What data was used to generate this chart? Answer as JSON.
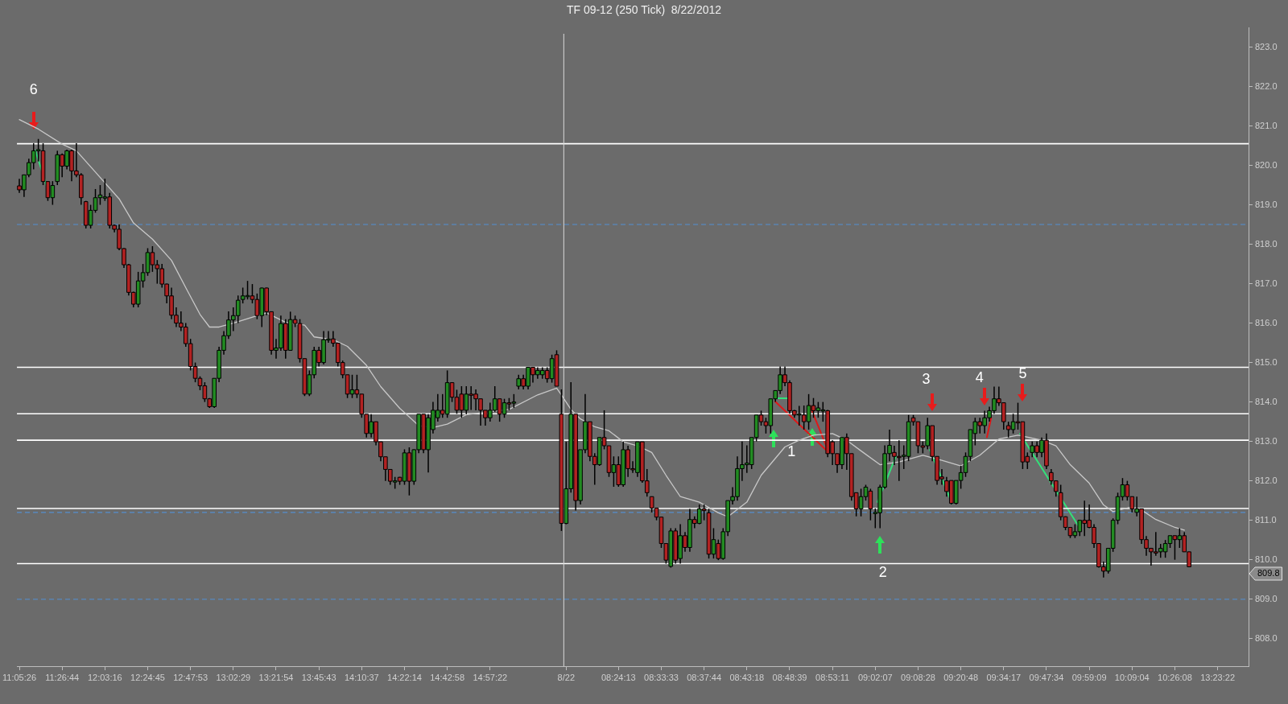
{
  "chart_data": {
    "type": "candlestick",
    "title": "TF 09-12 (250 Tick)  8/22/2012",
    "ylim": [
      807.3,
      823.5
    ],
    "yticks": [
      {
        "value": 808,
        "label": "808.0"
      },
      {
        "value": 809,
        "label": "809.0"
      },
      {
        "value": 810,
        "label": "810.0"
      },
      {
        "value": 811,
        "label": "811.0"
      },
      {
        "value": 812,
        "label": "812.0"
      },
      {
        "value": 813,
        "label": "813.0"
      },
      {
        "value": 814,
        "label": "814.0"
      },
      {
        "value": 815,
        "label": "815.0"
      },
      {
        "value": 816,
        "label": "816.0"
      },
      {
        "value": 817,
        "label": "817.0"
      },
      {
        "value": 818,
        "label": "818.0"
      },
      {
        "value": 819,
        "label": "819.0"
      },
      {
        "value": 820,
        "label": "820.0"
      },
      {
        "value": 821,
        "label": "821.0"
      },
      {
        "value": 822,
        "label": "822.0"
      },
      {
        "value": 823,
        "label": "823.0"
      }
    ],
    "grid": false,
    "legend": false,
    "categories": [
      "11:05:26",
      null,
      null,
      null,
      null,
      null,
      null,
      null,
      null,
      "11:26:44",
      null,
      null,
      null,
      null,
      null,
      null,
      null,
      null,
      "12:03:16",
      null,
      null,
      null,
      null,
      null,
      null,
      null,
      null,
      "12:24:45",
      null,
      null,
      null,
      null,
      null,
      null,
      null,
      null,
      "12:47:53",
      null,
      null,
      null,
      null,
      null,
      null,
      null,
      null,
      "13:02:29",
      null,
      null,
      null,
      null,
      null,
      null,
      null,
      null,
      "13:21:54",
      null,
      null,
      null,
      null,
      null,
      null,
      null,
      null,
      "13:45:43",
      null,
      null,
      null,
      null,
      null,
      null,
      null,
      null,
      "14:10:37",
      null,
      null,
      null,
      null,
      null,
      null,
      null,
      null,
      "14:22:14",
      null,
      null,
      null,
      null,
      null,
      null,
      null,
      null,
      "14:42:58",
      null,
      null,
      null,
      null,
      null,
      null,
      null,
      null,
      "14:57:22",
      null,
      null,
      null,
      null,
      null,
      null,
      null,
      null,
      null,
      null,
      null,
      null,
      null,
      null,
      null,
      "8/22",
      null,
      null,
      null,
      null,
      null,
      null,
      null,
      null,
      null,
      null,
      "08:24:13",
      null,
      null,
      null,
      null,
      null,
      null,
      null,
      null,
      "08:33:33",
      null,
      null,
      null,
      null,
      null,
      null,
      null,
      null,
      "08:37:44",
      null,
      null,
      null,
      null,
      null,
      null,
      null,
      null,
      "08:43:18",
      null,
      null,
      null,
      null,
      null,
      null,
      null,
      null,
      "08:48:39",
      null,
      null,
      null,
      null,
      null,
      null,
      null,
      null,
      "08:53:11",
      null,
      null,
      null,
      null,
      null,
      null,
      null,
      null,
      "09:02:07",
      null,
      null,
      null,
      null,
      null,
      null,
      null,
      null,
      "09:08:28",
      null,
      null,
      null,
      null,
      null,
      null,
      null,
      null,
      "09:20:48",
      null,
      null,
      null,
      null,
      null,
      null,
      null,
      null,
      "09:34:17",
      null,
      null,
      null,
      null,
      null,
      null,
      null,
      null,
      "09:47:34",
      null,
      null,
      null,
      null,
      null,
      null,
      null,
      null,
      "09:59:09",
      null,
      null,
      null,
      null,
      null,
      null,
      null,
      null,
      "10:09:04",
      null,
      null,
      null,
      null,
      null,
      null,
      null,
      null,
      "10:26:08",
      null,
      null,
      null,
      null,
      null,
      null,
      null,
      null,
      "13:23:22",
      null,
      null,
      null,
      null,
      null,
      null
    ],
    "ohlc": [
      [
        819.48,
        819.66,
        819.3,
        819.38
      ],
      [
        819.38,
        819.76,
        819.2,
        819.76
      ],
      [
        819.76,
        820.17,
        819.7,
        820.07
      ],
      [
        820.07,
        820.56,
        819.9,
        820.37
      ],
      [
        820.37,
        820.67,
        820.1,
        820.4
      ],
      [
        820.37,
        820.56,
        819.5,
        819.59
      ],
      [
        819.59,
        819.59,
        819.1,
        819.18
      ],
      [
        819.18,
        819.6,
        819.0,
        819.49
      ],
      [
        819.59,
        820.37,
        819.5,
        820.27
      ],
      [
        820.27,
        820.3,
        819.7,
        819.98
      ],
      [
        819.98,
        820.4,
        819.9,
        820.37
      ],
      [
        820.37,
        820.4,
        819.6,
        819.86
      ],
      [
        819.86,
        820.56,
        819.7,
        819.76
      ],
      [
        819.76,
        819.8,
        819.0,
        819.18
      ],
      [
        819.08,
        819.1,
        818.4,
        818.48
      ],
      [
        818.48,
        819.0,
        818.4,
        818.86
      ],
      [
        818.86,
        819.4,
        818.8,
        819.18
      ],
      [
        819.18,
        819.5,
        819.0,
        819.25
      ],
      [
        819.18,
        819.66,
        819.1,
        819.2
      ],
      [
        819.2,
        819.3,
        818.4,
        818.48
      ],
      [
        818.48,
        818.5,
        818.3,
        818.38
      ],
      [
        818.38,
        818.5,
        817.85,
        817.89
      ],
      [
        817.89,
        817.9,
        817.4,
        817.48
      ],
      [
        817.48,
        817.5,
        816.7,
        816.78
      ],
      [
        816.78,
        816.8,
        816.4,
        816.48
      ],
      [
        816.48,
        817.3,
        816.4,
        817.07
      ],
      [
        817.07,
        817.5,
        816.9,
        817.28
      ],
      [
        817.28,
        817.9,
        817.2,
        817.79
      ],
      [
        817.79,
        817.95,
        817.3,
        817.48
      ],
      [
        817.48,
        817.6,
        817.0,
        817.38
      ],
      [
        817.38,
        817.5,
        816.9,
        816.99
      ],
      [
        816.99,
        817.0,
        816.5,
        816.69
      ],
      [
        816.69,
        816.9,
        816.1,
        816.2
      ],
      [
        816.2,
        816.4,
        815.9,
        816.0
      ],
      [
        816.0,
        816.3,
        815.8,
        815.9
      ],
      [
        815.9,
        816.0,
        815.4,
        815.48
      ],
      [
        815.48,
        815.6,
        814.8,
        814.9
      ],
      [
        814.9,
        815.0,
        814.5,
        814.6
      ],
      [
        814.6,
        814.65,
        814.3,
        814.41
      ],
      [
        814.41,
        814.5,
        814.0,
        814.08
      ],
      [
        814.08,
        814.1,
        813.85,
        813.88
      ],
      [
        813.88,
        814.6,
        813.85,
        814.6
      ],
      [
        814.6,
        815.4,
        814.5,
        815.31
      ],
      [
        815.31,
        815.8,
        815.2,
        815.68
      ],
      [
        815.68,
        816.3,
        815.6,
        816.08
      ],
      [
        816.08,
        816.4,
        815.8,
        816.19
      ],
      [
        816.19,
        816.7,
        816.0,
        816.58
      ],
      [
        816.6,
        816.9,
        816.5,
        816.69
      ],
      [
        816.69,
        817.07,
        816.6,
        816.7
      ],
      [
        816.69,
        816.99,
        816.5,
        816.6
      ],
      [
        816.6,
        816.75,
        816.1,
        816.19
      ],
      [
        816.19,
        816.9,
        815.9,
        816.89
      ],
      [
        816.89,
        816.9,
        816.2,
        816.29
      ],
      [
        816.29,
        816.3,
        815.2,
        815.31
      ],
      [
        815.31,
        815.6,
        815.1,
        815.37
      ],
      [
        815.37,
        816.19,
        815.3,
        815.99
      ],
      [
        815.99,
        816.1,
        815.1,
        815.31
      ],
      [
        815.31,
        816.29,
        815.3,
        816.09
      ],
      [
        816.09,
        816.19,
        815.9,
        815.99
      ],
      [
        815.99,
        816.1,
        815.0,
        815.1
      ],
      [
        815.1,
        815.1,
        814.15,
        814.2
      ],
      [
        814.2,
        814.8,
        814.15,
        814.69
      ],
      [
        814.69,
        815.4,
        814.6,
        815.31
      ],
      [
        815.31,
        815.4,
        814.9,
        815.0
      ],
      [
        815.0,
        815.8,
        814.95,
        815.58
      ],
      [
        815.58,
        815.8,
        815.5,
        815.6
      ],
      [
        815.6,
        815.8,
        815.4,
        815.49
      ],
      [
        815.49,
        815.5,
        814.9,
        815.0
      ],
      [
        815.0,
        815.05,
        814.6,
        814.69
      ],
      [
        814.69,
        814.69,
        814.1,
        814.2
      ],
      [
        814.2,
        814.69,
        814.1,
        814.31
      ],
      [
        814.31,
        814.69,
        814.1,
        814.2
      ],
      [
        814.2,
        814.2,
        813.6,
        813.69
      ],
      [
        813.69,
        813.69,
        813.1,
        813.2
      ],
      [
        813.2,
        813.69,
        813.1,
        813.5
      ],
      [
        813.5,
        813.5,
        812.9,
        812.99
      ],
      [
        812.99,
        812.99,
        812.5,
        812.61
      ],
      [
        812.61,
        812.61,
        812.0,
        812.29
      ],
      [
        812.29,
        812.29,
        811.9,
        811.99
      ],
      [
        811.99,
        812.1,
        811.8,
        812.0
      ],
      [
        812.09,
        812.1,
        811.9,
        811.99
      ],
      [
        811.99,
        812.8,
        811.9,
        812.71
      ],
      [
        812.71,
        812.85,
        811.63,
        811.99
      ],
      [
        811.99,
        812.8,
        811.9,
        812.79
      ],
      [
        812.79,
        813.69,
        812.7,
        813.69
      ],
      [
        813.69,
        813.69,
        812.7,
        812.79
      ],
      [
        812.79,
        813.69,
        812.21,
        813.6
      ],
      [
        813.3,
        814.0,
        813.2,
        813.79
      ],
      [
        813.6,
        814.2,
        813.5,
        813.79
      ],
      [
        813.79,
        814.2,
        813.6,
        813.69
      ],
      [
        813.69,
        814.8,
        813.6,
        814.49
      ],
      [
        814.49,
        814.5,
        814.0,
        814.12
      ],
      [
        814.12,
        814.31,
        813.7,
        813.79
      ],
      [
        814.2,
        814.4,
        813.6,
        813.79
      ],
      [
        813.79,
        814.4,
        813.69,
        814.2
      ],
      [
        814.2,
        814.4,
        813.8,
        814.2
      ],
      [
        814.2,
        814.32,
        813.79,
        814.08
      ],
      [
        814.08,
        814.08,
        813.4,
        813.79
      ],
      [
        813.79,
        813.79,
        813.4,
        813.6
      ],
      [
        813.6,
        813.98,
        813.5,
        813.79
      ],
      [
        813.79,
        814.4,
        813.75,
        814.08
      ],
      [
        814.08,
        814.08,
        813.5,
        813.69
      ],
      [
        813.69,
        814.08,
        813.6,
        813.98
      ],
      [
        813.98,
        814.1,
        813.79,
        813.98
      ],
      [
        813.98,
        814.2,
        813.85,
        814.0
      ],
      [
        814.4,
        814.69,
        814.32,
        814.59
      ],
      [
        814.59,
        814.69,
        814.32,
        814.4
      ],
      [
        814.4,
        814.88,
        814.32,
        814.88
      ],
      [
        814.88,
        814.88,
        814.49,
        814.69
      ],
      [
        814.69,
        814.88,
        814.59,
        814.8
      ],
      [
        814.69,
        814.88,
        814.59,
        814.8
      ],
      [
        814.8,
        814.88,
        814.49,
        814.59
      ],
      [
        814.59,
        815.2,
        814.49,
        815.1
      ],
      [
        815.2,
        815.31,
        814.4,
        814.4
      ],
      [
        813.69,
        814.32,
        810.73,
        810.92
      ],
      [
        810.92,
        812.99,
        810.9,
        811.8
      ],
      [
        811.8,
        814.5,
        811.7,
        813.69
      ],
      [
        813.69,
        813.69,
        811.25,
        811.5
      ],
      [
        811.5,
        812.79,
        811.4,
        812.79
      ],
      [
        812.79,
        814.2,
        812.7,
        813.5
      ],
      [
        813.5,
        813.5,
        812.5,
        812.62
      ],
      [
        812.62,
        812.7,
        811.9,
        812.41
      ],
      [
        812.41,
        813.1,
        812.38,
        813.1
      ],
      [
        813.1,
        813.79,
        812.8,
        812.89
      ],
      [
        812.89,
        812.89,
        812.1,
        812.21
      ],
      [
        812.21,
        812.62,
        811.85,
        812.41
      ],
      [
        812.41,
        812.62,
        811.85,
        811.9
      ],
      [
        811.9,
        812.99,
        811.85,
        812.79
      ],
      [
        812.79,
        812.89,
        812.1,
        812.31
      ],
      [
        812.31,
        812.5,
        812.2,
        812.31
      ],
      [
        812.21,
        812.99,
        812.1,
        812.99
      ],
      [
        812.99,
        812.99,
        811.95,
        812.0
      ],
      [
        812.0,
        812.3,
        811.6,
        811.7
      ],
      [
        811.6,
        811.6,
        811.2,
        811.31
      ],
      [
        811.31,
        811.31,
        811.0,
        811.08
      ],
      [
        811.08,
        811.08,
        810.3,
        810.41
      ],
      [
        810.41,
        810.41,
        809.9,
        809.99
      ],
      [
        809.83,
        810.8,
        809.8,
        810.73
      ],
      [
        810.73,
        810.8,
        809.9,
        809.99
      ],
      [
        810.03,
        810.9,
        809.9,
        810.61
      ],
      [
        810.61,
        810.7,
        810.2,
        810.31
      ],
      [
        810.31,
        811.29,
        810.2,
        811.02
      ],
      [
        811.02,
        811.1,
        810.8,
        810.92
      ],
      [
        810.92,
        811.4,
        810.9,
        811.29
      ],
      [
        811.29,
        811.4,
        811.0,
        811.25
      ],
      [
        811.19,
        811.29,
        810.03,
        810.14
      ],
      [
        810.14,
        810.8,
        810.03,
        810.51
      ],
      [
        810.41,
        810.51,
        809.99,
        810.03
      ],
      [
        810.03,
        810.8,
        810.0,
        810.71
      ],
      [
        810.71,
        811.5,
        810.6,
        811.5
      ],
      [
        811.5,
        811.84,
        811.4,
        811.6
      ],
      [
        811.6,
        812.62,
        811.5,
        812.31
      ],
      [
        812.31,
        813.0,
        812.0,
        812.41
      ],
      [
        812.41,
        812.9,
        812.2,
        812.45
      ],
      [
        812.41,
        813.1,
        812.3,
        813.1
      ],
      [
        813.1,
        813.67,
        813.0,
        813.67
      ],
      [
        813.67,
        813.78,
        813.4,
        813.5
      ],
      [
        813.5,
        813.6,
        813.2,
        813.4
      ],
      [
        813.4,
        814.08,
        813.2,
        814.08
      ],
      [
        814.08,
        814.29,
        814.0,
        814.29
      ],
      [
        814.29,
        814.9,
        814.2,
        814.69
      ],
      [
        814.69,
        814.9,
        814.4,
        814.49
      ],
      [
        814.49,
        814.55,
        813.7,
        813.78
      ],
      [
        813.78,
        813.8,
        813.6,
        813.67
      ],
      [
        813.67,
        813.9,
        813.4,
        813.7
      ],
      [
        813.67,
        813.91,
        813.3,
        813.5
      ],
      [
        813.5,
        814.2,
        813.3,
        813.91
      ],
      [
        813.91,
        814.1,
        813.6,
        813.78
      ],
      [
        813.78,
        814.0,
        813.6,
        813.85
      ],
      [
        813.78,
        814.0,
        813.5,
        813.8
      ],
      [
        813.78,
        813.8,
        812.6,
        812.69
      ],
      [
        812.99,
        813.03,
        812.4,
        812.69
      ],
      [
        812.69,
        812.69,
        812.2,
        812.41
      ],
      [
        812.41,
        813.1,
        812.3,
        813.1
      ],
      [
        813.1,
        813.2,
        812.28,
        812.69
      ],
      [
        812.69,
        812.69,
        811.5,
        811.6
      ],
      [
        811.7,
        811.7,
        811.1,
        811.29
      ],
      [
        811.29,
        811.8,
        811.1,
        811.6
      ],
      [
        811.6,
        811.9,
        811.5,
        811.84
      ],
      [
        811.74,
        811.8,
        811.0,
        811.29
      ],
      [
        811.19,
        811.3,
        810.8,
        811.2
      ],
      [
        811.19,
        811.9,
        810.8,
        811.84
      ],
      [
        811.84,
        812.9,
        811.8,
        812.69
      ],
      [
        812.69,
        813.3,
        812.5,
        812.9
      ],
      [
        812.72,
        812.89,
        812.4,
        812.62
      ],
      [
        812.62,
        813.03,
        812.0,
        812.62
      ],
      [
        812.62,
        812.9,
        812.3,
        812.65
      ],
      [
        812.62,
        813.67,
        812.5,
        813.5
      ],
      [
        813.6,
        813.67,
        813.4,
        813.5
      ],
      [
        813.5,
        813.5,
        812.7,
        812.89
      ],
      [
        812.89,
        813.0,
        812.7,
        812.85
      ],
      [
        812.89,
        813.6,
        812.8,
        813.4
      ],
      [
        813.4,
        813.4,
        812.5,
        812.62
      ],
      [
        812.62,
        812.62,
        811.9,
        812.01
      ],
      [
        812.1,
        812.3,
        811.9,
        812.05
      ],
      [
        812.0,
        812.1,
        811.6,
        811.73
      ],
      [
        812.01,
        812.01,
        811.4,
        811.43
      ],
      [
        811.43,
        812.01,
        811.4,
        812.01
      ],
      [
        812.01,
        812.38,
        811.8,
        812.21
      ],
      [
        812.21,
        812.72,
        812.1,
        812.62
      ],
      [
        812.62,
        813.3,
        812.5,
        813.3
      ],
      [
        813.2,
        813.6,
        812.9,
        813.5
      ],
      [
        813.5,
        813.6,
        813.2,
        813.4
      ],
      [
        813.4,
        813.78,
        813.2,
        813.6
      ],
      [
        813.6,
        813.88,
        813.5,
        813.78
      ],
      [
        813.78,
        814.39,
        813.7,
        814.08
      ],
      [
        814.08,
        814.39,
        813.9,
        813.98
      ],
      [
        813.98,
        813.98,
        813.3,
        813.5
      ],
      [
        813.4,
        813.5,
        813.1,
        813.3
      ],
      [
        813.3,
        813.7,
        813.2,
        813.5
      ],
      [
        813.5,
        813.98,
        813.3,
        813.5
      ],
      [
        813.5,
        813.5,
        812.3,
        812.48
      ],
      [
        812.62,
        812.72,
        812.3,
        812.48
      ],
      [
        812.72,
        813.0,
        812.6,
        812.89
      ],
      [
        812.89,
        813.0,
        812.6,
        812.72
      ],
      [
        812.72,
        813.1,
        812.6,
        813.03
      ],
      [
        813.03,
        813.2,
        812.3,
        812.38
      ],
      [
        812.21,
        812.3,
        811.9,
        812.0
      ],
      [
        812.0,
        812.0,
        811.6,
        811.73
      ],
      [
        811.7,
        811.9,
        811.0,
        811.09
      ],
      [
        811.09,
        811.1,
        810.75,
        810.82
      ],
      [
        810.82,
        810.82,
        810.55,
        810.61
      ],
      [
        810.61,
        810.9,
        810.55,
        810.71
      ],
      [
        810.71,
        811.0,
        810.6,
        811.0
      ],
      [
        811.0,
        811.5,
        810.6,
        810.92
      ],
      [
        811.0,
        811.4,
        810.8,
        810.82
      ],
      [
        810.82,
        810.9,
        810.3,
        810.41
      ],
      [
        810.41,
        810.41,
        809.8,
        809.82
      ],
      [
        809.82,
        809.95,
        809.55,
        809.71
      ],
      [
        809.71,
        810.29,
        809.65,
        810.29
      ],
      [
        810.29,
        811.05,
        810.2,
        811.0
      ],
      [
        811.0,
        811.7,
        810.9,
        811.6
      ],
      [
        811.6,
        812.07,
        811.5,
        811.9
      ],
      [
        811.9,
        812.0,
        811.5,
        811.6
      ],
      [
        811.6,
        811.6,
        811.2,
        811.29
      ],
      [
        811.2,
        811.6,
        811.1,
        811.29
      ],
      [
        811.29,
        811.29,
        810.4,
        810.51
      ],
      [
        810.51,
        810.6,
        810.1,
        810.29
      ],
      [
        810.29,
        810.3,
        809.85,
        810.2
      ],
      [
        810.2,
        810.7,
        810.1,
        810.2
      ],
      [
        810.2,
        810.4,
        810.05,
        810.29
      ],
      [
        810.2,
        810.5,
        810.05,
        810.41
      ],
      [
        810.41,
        810.61,
        810.3,
        810.61
      ],
      [
        810.61,
        810.61,
        810.0,
        810.51
      ],
      [
        810.51,
        810.8,
        810.3,
        810.61
      ],
      [
        810.61,
        810.7,
        810.2,
        810.2
      ],
      [
        810.2,
        810.2,
        809.82,
        809.82
      ],
      null,
      null,
      null,
      null,
      null,
      null,
      null,
      null,
      null,
      null,
      null,
      null
    ],
    "colors": [
      "#b22222",
      "#228b22",
      "#228b22",
      "#228b22",
      "#228b22",
      "#b22222",
      "#b22222",
      "#228b22",
      "#228b22",
      "#b22222",
      "#228b22",
      "#b22222",
      "#b22222",
      "#b22222",
      "#b22222",
      "#228b22",
      "#228b22",
      "#228b22",
      "#228b22",
      "#b22222",
      "#b22222",
      "#b22222",
      "#b22222",
      "#b22222",
      "#b22222",
      "#228b22",
      "#228b22",
      "#228b22",
      "#b22222",
      "#b22222",
      "#b22222",
      "#b22222",
      "#b22222",
      "#b22222",
      "#b22222",
      "#b22222",
      "#b22222",
      "#b22222",
      "#b22222",
      "#b22222",
      "#b22222",
      "#228b22",
      "#228b22",
      "#228b22",
      "#228b22",
      "#228b22",
      "#228b22",
      "#228b22",
      "#228b22",
      "#b22222",
      "#b22222",
      "#228b22",
      "#b22222",
      "#b22222",
      "#228b22",
      "#228b22",
      "#b22222",
      "#228b22",
      "#b22222",
      "#b22222",
      "#b22222",
      "#228b22",
      "#228b22",
      "#b22222",
      "#228b22",
      "#228b22",
      "#b22222",
      "#b22222",
      "#b22222",
      "#b22222",
      "#228b22",
      "#b22222",
      "#b22222",
      "#b22222",
      "#228b22",
      "#b22222",
      "#b22222",
      "#b22222",
      "#b22222",
      "#228b22",
      "#b22222",
      "#228b22",
      "#b22222",
      "#228b22",
      "#228b22",
      "#b22222",
      "#228b22",
      "#228b22",
      "#228b22",
      "#b22222",
      "#228b22",
      "#b22222",
      "#b22222",
      "#b22222",
      "#228b22",
      "#b22222",
      "#b22222",
      "#b22222",
      "#b22222",
      "#228b22",
      "#228b22",
      "#b22222",
      "#228b22",
      "#b22222",
      "#228b22",
      "#228b22",
      "#b22222",
      "#228b22",
      "#b22222",
      "#228b22",
      "#228b22",
      "#b22222",
      "#228b22",
      "#b22222",
      "#b22222",
      "#228b22",
      "#228b22",
      "#b22222",
      "#228b22",
      "#228b22",
      "#b22222",
      "#b22222",
      "#228b22",
      "#b22222",
      "#b22222",
      "#228b22",
      "#b22222",
      "#228b22",
      "#b22222",
      "#b22222",
      "#228b22",
      "#b22222",
      "#b22222",
      "#b22222",
      "#b22222",
      "#b22222",
      "#b22222",
      "#228b22",
      "#b22222",
      "#228b22",
      "#b22222",
      "#228b22",
      "#b22222",
      "#228b22",
      "#b22222",
      "#b22222",
      "#228b22",
      "#b22222",
      "#228b22",
      "#228b22",
      "#228b22",
      "#228b22",
      "#228b22",
      "#228b22",
      "#228b22",
      "#228b22",
      "#b22222",
      "#b22222",
      "#228b22",
      "#228b22",
      "#228b22",
      "#b22222",
      "#b22222",
      "#b22222",
      "#228b22",
      "#b22222",
      "#228b22",
      "#b22222",
      "#228b22",
      "#228b22",
      "#b22222",
      "#b22222",
      "#b22222",
      "#228b22",
      "#b22222",
      "#b22222",
      "#b22222",
      "#228b22",
      "#228b22",
      "#b22222",
      "#228b22",
      "#228b22",
      "#228b22",
      "#228b22",
      "#b22222",
      "#b22222",
      "#228b22",
      "#228b22",
      "#b22222",
      "#b22222",
      "#b22222",
      "#228b22",
      "#b22222",
      "#b22222",
      "#b22222",
      "#b22222",
      "#b22222",
      "#228b22",
      "#228b22",
      "#228b22",
      "#228b22",
      "#228b22",
      "#b22222",
      "#228b22",
      "#228b22",
      "#228b22",
      "#b22222",
      "#b22222",
      "#b22222",
      "#228b22",
      "#b22222",
      "#b22222",
      "#b22222",
      "#228b22",
      "#b22222",
      "#228b22",
      "#b22222",
      "#b22222",
      "#b22222",
      "#b22222",
      "#b22222",
      "#b22222",
      "#228b22",
      "#228b22",
      "#b22222",
      "#b22222",
      "#b22222",
      "#b22222",
      "#b22222",
      "#228b22",
      "#228b22",
      "#228b22",
      "#228b22",
      "#b22222",
      "#b22222",
      "#228b22",
      "#b22222",
      "#b22222",
      "#b22222",
      "#b22222",
      "#228b22",
      "#228b22",
      "#228b22",
      "#b22222",
      "#228b22",
      "#b22222",
      "#b22222",
      null,
      null,
      null,
      null,
      null,
      null,
      null,
      null,
      null,
      null,
      null,
      null
    ],
    "series": [
      {
        "type": "line",
        "color": "#c8c8c8",
        "values": [
          821.16,
          null,
          null,
          null,
          820.92,
          null,
          null,
          null,
          null,
          820.54,
          null,
          null,
          820.37,
          null,
          null,
          null,
          819.83,
          null,
          null,
          null,
          null,
          819.15,
          null,
          null,
          818.54,
          null,
          null,
          null,
          818.13,
          null,
          null,
          null,
          817.59,
          null,
          null,
          816.9,
          null,
          null,
          816.22,
          null,
          815.9,
          null,
          815.9,
          null,
          null,
          816.0,
          null,
          null,
          null,
          null,
          816.19,
          null,
          816.26,
          null,
          null,
          null,
          816.02,
          null,
          null,
          null,
          815.95,
          null,
          815.65,
          null,
          null,
          null,
          815.58,
          null,
          null,
          815.41,
          null,
          null,
          null,
          814.93,
          null,
          null,
          814.39,
          null,
          null,
          null,
          813.84,
          null,
          null,
          null,
          813.4,
          null,
          null,
          813.35,
          null,
          null,
          813.44,
          null,
          null,
          null,
          813.68,
          null,
          null,
          null,
          813.74,
          null,
          null,
          null,
          null,
          813.81,
          null,
          null,
          null,
          null,
          null,
          814.18,
          null,
          null,
          null,
          814.35,
          814.18,
          null,
          813.81,
          null,
          813.57,
          null,
          null,
          813.37,
          null,
          null,
          813.27,
          null,
          null,
          812.99,
          null,
          null,
          812.89,
          null,
          null,
          812.72,
          null,
          null,
          812.14,
          null,
          null,
          811.6,
          null,
          null,
          null,
          811.46,
          null,
          null,
          null,
          811.19,
          null,
          811.09,
          null,
          null,
          null,
          811.46,
          null,
          null,
          812.14,
          null,
          null,
          null,
          null,
          812.86,
          null,
          null,
          813.03,
          null,
          null,
          813.16,
          null,
          null,
          null,
          813.2,
          null,
          null,
          813.03,
          null,
          null,
          812.76,
          null,
          null,
          null,
          812.41,
          null,
          null,
          null,
          812.48,
          null,
          null,
          null,
          null,
          812.65,
          null,
          null,
          null,
          812.52,
          null,
          null,
          null,
          812.38,
          null,
          null,
          null,
          812.65,
          null,
          null,
          null,
          813.06,
          null,
          null,
          null,
          813.16,
          null,
          null,
          null,
          null,
          813.03,
          null,
          null,
          812.89,
          null,
          null,
          812.41,
          null,
          null,
          null,
          811.94,
          null,
          null,
          811.39,
          null,
          811.22,
          null,
          null,
          null,
          811.34,
          null,
          811.26,
          null,
          null,
          811.02,
          null,
          null,
          null,
          810.82,
          null,
          810.75,
          null,
          null,
          null,
          null,
          null,
          null,
          null,
          null,
          null,
          null,
          null,
          null,
          null
        ]
      }
    ],
    "ref_lines": [
      {
        "axis": "y",
        "value": 818.5,
        "color": "#5b84b1",
        "line_style": "dashed"
      },
      {
        "axis": "y",
        "value": 811.2,
        "color": "#5b84b1",
        "line_style": "dashed"
      },
      {
        "axis": "y",
        "value": 809.0,
        "color": "#5b84b1",
        "line_style": "dashed"
      },
      {
        "axis": "y",
        "value": 820.55,
        "color": "#ffffff",
        "line_style": "solid"
      },
      {
        "axis": "y",
        "value": 814.88,
        "color": "#ffffff",
        "line_style": "solid"
      },
      {
        "axis": "y",
        "value": 813.7,
        "color": "#ffffff",
        "line_style": "solid"
      },
      {
        "axis": "y",
        "value": 813.03,
        "color": "#ffffff",
        "line_style": "solid"
      },
      {
        "axis": "y",
        "value": 811.3,
        "color": "#ffffff",
        "line_style": "solid"
      },
      {
        "axis": "y",
        "value": 809.9,
        "color": "#ffffff",
        "line_style": "solid"
      },
      {
        "axis": "x",
        "value": "8/22",
        "color": "#d8d8d8",
        "line_style": "solid"
      }
    ],
    "annotations": [
      "6",
      "1",
      "2",
      "3",
      "4",
      "5",
      "809.8"
    ]
  }
}
